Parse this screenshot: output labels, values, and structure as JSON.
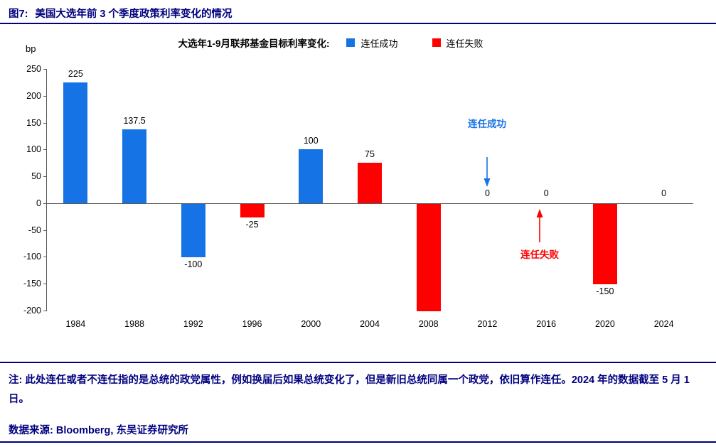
{
  "page": {
    "figure_label": "图7:",
    "title": "美国大选年前 3 个季度政策利率变化的情况",
    "note": "注: 此处连任或者不连任指的是总统的政党属性，例如换届后如果总统变化了，但是新旧总统同属一个政党，依旧算作连任。2024 年的数据截至 5 月 1 日。",
    "source": "数据来源: Bloomberg, 东吴证券研究所"
  },
  "colors": {
    "accent_navy": "#000080",
    "success_blue": "#1673E6",
    "fail_red": "#FF0000",
    "axis_gray": "#595959"
  },
  "chart_data": {
    "type": "bar",
    "title": "大选年1-9月联邦基金目标利率变化:",
    "unit": "bp",
    "categories": [
      "1984",
      "1988",
      "1992",
      "1996",
      "2000",
      "2004",
      "2008",
      "2012",
      "2016",
      "2020",
      "2024"
    ],
    "values": [
      225,
      137.5,
      -100,
      -25,
      100,
      75,
      -200,
      0,
      0,
      -150,
      0
    ],
    "data_labels": [
      "225",
      "137.5",
      "-100",
      "-25",
      "100",
      "75",
      "",
      "0",
      "0",
      "-150",
      "0"
    ],
    "bar_series": [
      "success",
      "success",
      "success",
      "fail",
      "success",
      "fail",
      "fail",
      null,
      null,
      "fail",
      null
    ],
    "legend": {
      "success": {
        "label": "连任成功",
        "color": "#1673E6"
      },
      "fail": {
        "label": "连任失败",
        "color": "#FF0000"
      }
    },
    "legend_position": "top",
    "grid": false,
    "ylim": [
      -200,
      250
    ],
    "yticks": [
      250,
      200,
      150,
      100,
      50,
      0,
      -50,
      -100,
      -150,
      -200
    ],
    "annotations": [
      {
        "text": "连任成功",
        "target": "2012",
        "color": "#1673E6",
        "direction": "down"
      },
      {
        "text": "连任失败",
        "target": "2016",
        "color": "#FF0000",
        "direction": "up"
      }
    ]
  }
}
